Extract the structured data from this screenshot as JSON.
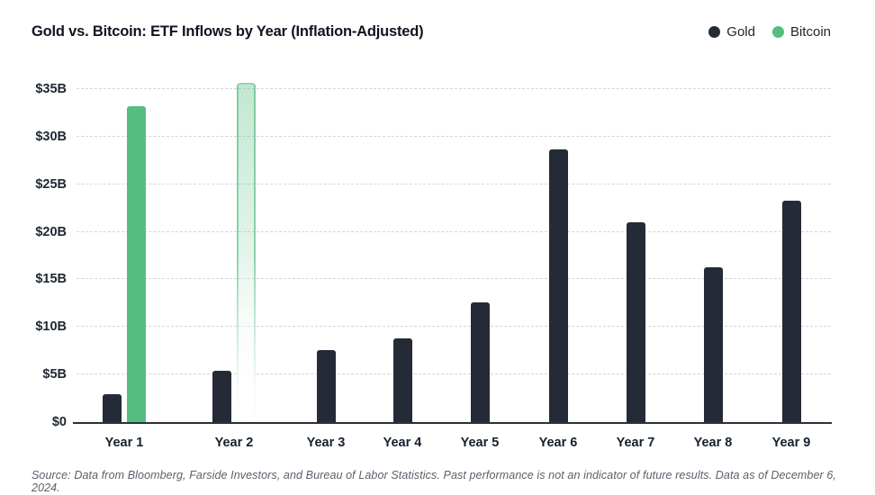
{
  "header": {
    "title": "Gold vs. Bitcoin: ETF Inflows by Year (Inflation-Adjusted)",
    "legend": [
      {
        "label": "Gold",
        "color": "#242b36",
        "icon": "legend-dot-gold"
      },
      {
        "label": "Bitcoin",
        "color": "#56bd81",
        "icon": "legend-dot-bitcoin"
      }
    ]
  },
  "chart_data": {
    "type": "bar",
    "title": "Gold vs. Bitcoin: ETF Inflows by Year (Inflation-Adjusted)",
    "categories": [
      "Year 1",
      "Year 2",
      "Year 3",
      "Year 4",
      "Year 5",
      "Year 6",
      "Year 7",
      "Year 8",
      "Year 9"
    ],
    "series": [
      {
        "name": "Gold",
        "color": "#242b36",
        "values": [
          2.9,
          5.4,
          7.6,
          8.8,
          12.6,
          28.7,
          21.0,
          16.3,
          23.3
        ]
      },
      {
        "name": "Bitcoin",
        "color": "#56bd81",
        "values": [
          33.2,
          35.7,
          null,
          null,
          null,
          null,
          null,
          null,
          null
        ],
        "projected_indices": [
          1
        ],
        "projected_style": "faded gradient fill with green outline"
      }
    ],
    "unit": "billions USD",
    "ylim": [
      0,
      35
    ],
    "ytick_step": 5,
    "ytick_labels": [
      "$0",
      "$5B",
      "$10B",
      "$15B",
      "$20B",
      "$25B",
      "$30B",
      "$35B"
    ],
    "grid": "horizontal dashed",
    "legend_position": "top-right",
    "colors": {
      "grid": "#d4d7db",
      "axis_line": "#2a313b",
      "title_text": "#0e1420",
      "tick_text": "#1e2733",
      "footer_text": "#5b6069"
    }
  },
  "footer": {
    "source_note": "Source: Data from Bloomberg, Farside Investors, and Bureau of Labor Statistics. Past performance is not an indicator of future results. Data as of December 6, 2024."
  }
}
